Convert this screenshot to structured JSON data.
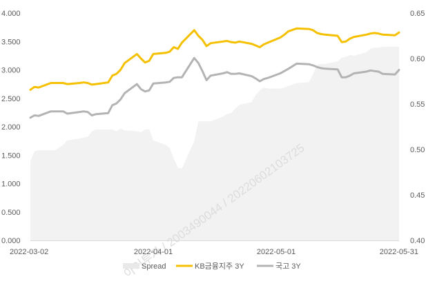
{
  "chart_data": {
    "type": "line",
    "x": [
      "2022-03-02",
      "2022-03-03",
      "2022-03-04",
      "2022-03-07",
      "2022-03-08",
      "2022-03-10",
      "2022-03-11",
      "2022-03-14",
      "2022-03-15",
      "2022-03-16",
      "2022-03-17",
      "2022-03-18",
      "2022-03-21",
      "2022-03-22",
      "2022-03-23",
      "2022-03-24",
      "2022-03-25",
      "2022-03-28",
      "2022-03-29",
      "2022-03-30",
      "2022-03-31",
      "2022-04-01",
      "2022-04-04",
      "2022-04-05",
      "2022-04-06",
      "2022-04-07",
      "2022-04-08",
      "2022-04-11",
      "2022-04-12",
      "2022-04-13",
      "2022-04-14",
      "2022-04-15",
      "2022-04-18",
      "2022-04-19",
      "2022-04-20",
      "2022-04-21",
      "2022-04-22",
      "2022-04-25",
      "2022-04-26",
      "2022-04-27",
      "2022-04-28",
      "2022-04-29",
      "2022-05-02",
      "2022-05-03",
      "2022-05-04",
      "2022-05-06",
      "2022-05-09",
      "2022-05-10",
      "2022-05-11",
      "2022-05-12",
      "2022-05-13",
      "2022-05-16",
      "2022-05-17",
      "2022-05-18",
      "2022-05-19",
      "2022-05-20",
      "2022-05-23",
      "2022-05-24",
      "2022-05-25",
      "2022-05-26",
      "2022-05-27",
      "2022-05-30",
      "2022-05-31"
    ],
    "x_ticks": [
      "2022-03-02",
      "2022-04-01",
      "2022-05-01",
      "2022-05-31"
    ],
    "left_axis": {
      "ylim": [
        0,
        4
      ],
      "ticks": [
        "0.000",
        "0.500",
        "1.000",
        "1.500",
        "2.000",
        "2.500",
        "3.000",
        "3.500",
        "4.000"
      ]
    },
    "right_axis": {
      "ylim": [
        0.4,
        0.65
      ],
      "ticks": [
        "0.40",
        "0.45",
        "0.50",
        "0.55",
        "0.60",
        "0.65"
      ]
    },
    "grid": false,
    "legend_position": "bottom",
    "series": [
      {
        "name": "Spread",
        "type": "area",
        "axis": "right",
        "color": "#f2f2f2",
        "values": [
          0.487,
          0.498,
          0.499,
          0.499,
          0.499,
          0.505,
          0.51,
          0.512,
          0.513,
          0.514,
          0.52,
          0.522,
          0.522,
          0.522,
          0.52,
          0.523,
          0.521,
          0.52,
          0.519,
          0.522,
          0.522,
          0.51,
          0.505,
          0.502,
          0.49,
          0.48,
          0.479,
          0.509,
          0.531,
          0.531,
          0.531,
          0.531,
          0.536,
          0.539,
          0.54,
          0.545,
          0.549,
          0.552,
          0.56,
          0.565,
          0.568,
          0.567,
          0.567,
          0.568,
          0.57,
          0.573,
          0.574,
          0.583,
          0.593,
          0.594,
          0.594,
          0.597,
          0.601,
          0.602,
          0.604,
          0.603,
          0.607,
          0.611,
          0.612,
          0.612,
          0.613,
          0.613,
          0.613
        ]
      },
      {
        "name": "KB금융지주 3Y",
        "type": "line",
        "axis": "left",
        "color": "#f5c000",
        "values": [
          2.65,
          2.7,
          2.69,
          2.77,
          2.77,
          2.77,
          2.75,
          2.77,
          2.78,
          2.77,
          2.74,
          2.75,
          2.78,
          2.9,
          2.93,
          3.0,
          3.12,
          3.28,
          3.2,
          3.13,
          3.16,
          3.28,
          3.3,
          3.32,
          3.4,
          3.37,
          3.48,
          3.7,
          3.6,
          3.53,
          3.42,
          3.47,
          3.5,
          3.51,
          3.49,
          3.48,
          3.5,
          3.46,
          3.43,
          3.4,
          3.45,
          3.48,
          3.57,
          3.62,
          3.68,
          3.73,
          3.72,
          3.7,
          3.65,
          3.63,
          3.62,
          3.6,
          3.49,
          3.5,
          3.55,
          3.58,
          3.62,
          3.64,
          3.65,
          3.64,
          3.62,
          3.61,
          3.66
        ]
      },
      {
        "name": "국고 3Y",
        "type": "line",
        "axis": "left",
        "color": "#b3b3b3",
        "values": [
          2.16,
          2.2,
          2.19,
          2.27,
          2.27,
          2.27,
          2.23,
          2.26,
          2.27,
          2.26,
          2.2,
          2.22,
          2.24,
          2.38,
          2.41,
          2.48,
          2.59,
          2.75,
          2.66,
          2.62,
          2.64,
          2.76,
          2.78,
          2.79,
          2.86,
          2.87,
          2.87,
          3.21,
          3.12,
          2.98,
          2.82,
          2.9,
          2.94,
          2.96,
          2.93,
          2.93,
          2.94,
          2.89,
          2.85,
          2.8,
          2.84,
          2.86,
          2.94,
          2.98,
          3.02,
          3.11,
          3.1,
          3.08,
          3.05,
          3.03,
          3.02,
          3.01,
          2.87,
          2.87,
          2.9,
          2.94,
          2.97,
          2.99,
          2.98,
          2.97,
          2.93,
          2.92,
          3.0
        ]
      }
    ]
  },
  "watermark": "아이투자 / 2003490044 / 20220602103725"
}
